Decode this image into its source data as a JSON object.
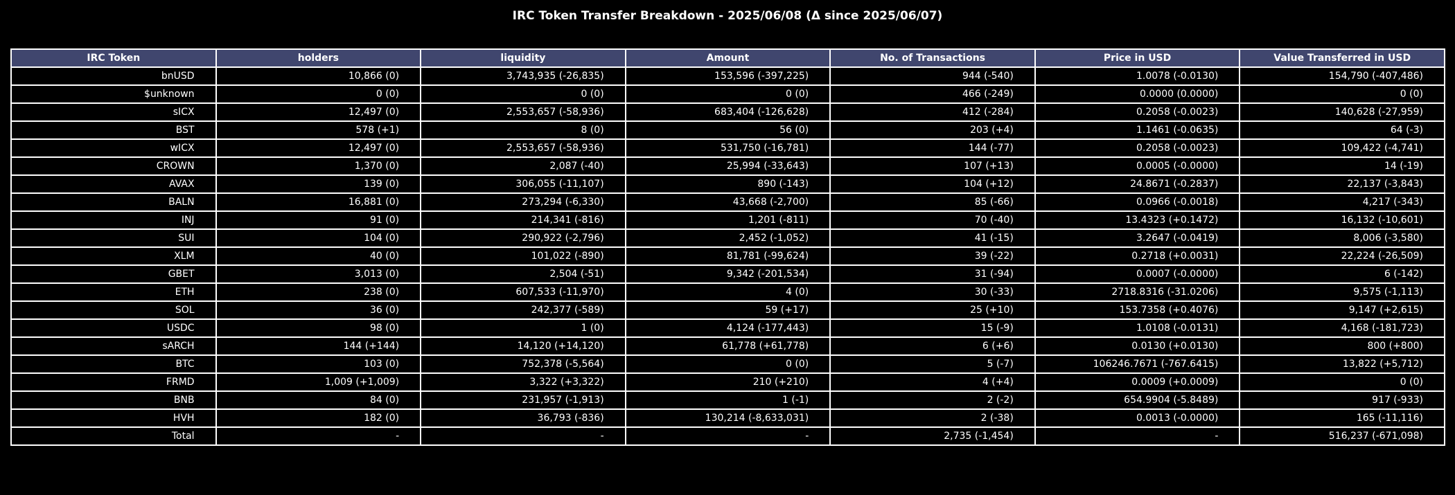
{
  "chart_data": {
    "type": "table",
    "title": "IRC Token Transfer Breakdown - 2025/06/08 (Δ since 2025/06/07)",
    "columns": [
      "IRC Token",
      "holders",
      "liquidity",
      "Amount",
      "No. of Transactions",
      "Price in USD",
      "Value Transferred in USD"
    ],
    "rows": [
      [
        "bnUSD",
        "10,866 (0)",
        "3,743,935 (-26,835)",
        "153,596 (-397,225)",
        "944 (-540)",
        "1.0078 (-0.0130)",
        "154,790 (-407,486)"
      ],
      [
        "$unknown",
        "0 (0)",
        "0 (0)",
        "0 (0)",
        "466 (-249)",
        "0.0000 (0.0000)",
        "0 (0)"
      ],
      [
        "sICX",
        "12,497 (0)",
        "2,553,657 (-58,936)",
        "683,404 (-126,628)",
        "412 (-284)",
        "0.2058 (-0.0023)",
        "140,628 (-27,959)"
      ],
      [
        "BST",
        "578 (+1)",
        "8 (0)",
        "56 (0)",
        "203 (+4)",
        "1.1461 (-0.0635)",
        "64 (-3)"
      ],
      [
        "wICX",
        "12,497 (0)",
        "2,553,657 (-58,936)",
        "531,750 (-16,781)",
        "144 (-77)",
        "0.2058 (-0.0023)",
        "109,422 (-4,741)"
      ],
      [
        "CROWN",
        "1,370 (0)",
        "2,087 (-40)",
        "25,994 (-33,643)",
        "107 (+13)",
        "0.0005 (-0.0000)",
        "14 (-19)"
      ],
      [
        "AVAX",
        "139 (0)",
        "306,055 (-11,107)",
        "890 (-143)",
        "104 (+12)",
        "24.8671 (-0.2837)",
        "22,137 (-3,843)"
      ],
      [
        "BALN",
        "16,881 (0)",
        "273,294 (-6,330)",
        "43,668 (-2,700)",
        "85 (-66)",
        "0.0966 (-0.0018)",
        "4,217 (-343)"
      ],
      [
        "INJ",
        "91 (0)",
        "214,341 (-816)",
        "1,201 (-811)",
        "70 (-40)",
        "13.4323 (+0.1472)",
        "16,132 (-10,601)"
      ],
      [
        "SUI",
        "104 (0)",
        "290,922 (-2,796)",
        "2,452 (-1,052)",
        "41 (-15)",
        "3.2647 (-0.0419)",
        "8,006 (-3,580)"
      ],
      [
        "XLM",
        "40 (0)",
        "101,022 (-890)",
        "81,781 (-99,624)",
        "39 (-22)",
        "0.2718 (+0.0031)",
        "22,224 (-26,509)"
      ],
      [
        "GBET",
        "3,013 (0)",
        "2,504 (-51)",
        "9,342 (-201,534)",
        "31 (-94)",
        "0.0007 (-0.0000)",
        "6 (-142)"
      ],
      [
        "ETH",
        "238 (0)",
        "607,533 (-11,970)",
        "4 (0)",
        "30 (-33)",
        "2718.8316 (-31.0206)",
        "9,575 (-1,113)"
      ],
      [
        "SOL",
        "36 (0)",
        "242,377 (-589)",
        "59 (+17)",
        "25 (+10)",
        "153.7358 (+0.4076)",
        "9,147 (+2,615)"
      ],
      [
        "USDC",
        "98 (0)",
        "1 (0)",
        "4,124 (-177,443)",
        "15 (-9)",
        "1.0108 (-0.0131)",
        "4,168 (-181,723)"
      ],
      [
        "sARCH",
        "144 (+144)",
        "14,120 (+14,120)",
        "61,778 (+61,778)",
        "6 (+6)",
        "0.0130 (+0.0130)",
        "800 (+800)"
      ],
      [
        "BTC",
        "103 (0)",
        "752,378 (-5,564)",
        "0 (0)",
        "5 (-7)",
        "106246.7671 (-767.6415)",
        "13,822 (+5,712)"
      ],
      [
        "FRMD",
        "1,009 (+1,009)",
        "3,322 (+3,322)",
        "210 (+210)",
        "4 (+4)",
        "0.0009 (+0.0009)",
        "0 (0)"
      ],
      [
        "BNB",
        "84 (0)",
        "231,957 (-1,913)",
        "1 (-1)",
        "2 (-2)",
        "654.9904 (-5.8489)",
        "917 (-933)"
      ],
      [
        "HVH",
        "182 (0)",
        "36,793 (-836)",
        "130,214 (-8,633,031)",
        "2 (-38)",
        "0.0013 (-0.0000)",
        "165 (-11,116)"
      ],
      [
        "Total",
        "-",
        "-",
        "-",
        "2,735 (-1,454)",
        "-",
        "516,237 (-671,098)"
      ]
    ],
    "colors": {
      "background": "#000000",
      "header_background": "#40466e",
      "grid_line": "#ffffff",
      "text": "#ffffff"
    }
  }
}
